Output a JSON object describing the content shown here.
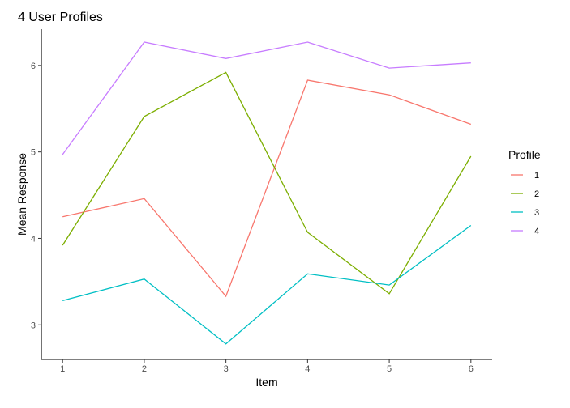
{
  "chart_data": {
    "type": "line",
    "title": "4 User Profiles",
    "xlabel": "Item",
    "ylabel": "Mean Response",
    "x": [
      1,
      2,
      3,
      4,
      5,
      6
    ],
    "xlim": [
      0.74,
      6.26
    ],
    "ylim": [
      2.6,
      6.42
    ],
    "xticks": [
      1,
      2,
      3,
      4,
      5,
      6
    ],
    "yticks": [
      3,
      4,
      5,
      6
    ],
    "grid": false,
    "legend": {
      "title": "Profile",
      "position": "right"
    },
    "series": [
      {
        "name": "1",
        "color": "#F8766D",
        "values": [
          4.25,
          4.46,
          3.33,
          5.83,
          5.66,
          5.32
        ]
      },
      {
        "name": "2",
        "color": "#7CAE00",
        "values": [
          3.92,
          5.41,
          5.92,
          4.07,
          3.36,
          4.95
        ]
      },
      {
        "name": "3",
        "color": "#00BFC4",
        "values": [
          3.28,
          3.53,
          2.78,
          3.59,
          3.46,
          4.15
        ]
      },
      {
        "name": "4",
        "color": "#C77CFF",
        "values": [
          4.97,
          6.27,
          6.08,
          6.27,
          5.97,
          6.03
        ]
      }
    ]
  }
}
